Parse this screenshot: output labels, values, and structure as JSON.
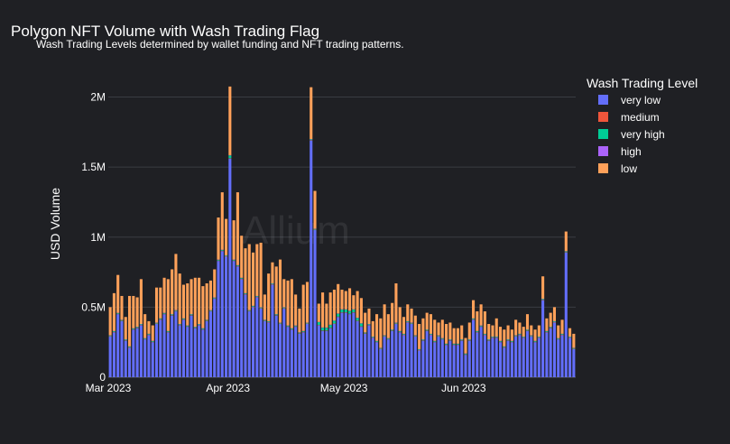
{
  "chart_data": {
    "type": "bar",
    "stacked": true,
    "title": "Polygon NFT Volume with Wash Trading Flag",
    "subtitle": "Wash Trading Levels determined by wallet funding and NFT trading patterns.",
    "ylabel": "USD Volume",
    "xlabel": "",
    "watermark": "Allium",
    "ylim": [
      0,
      2100000
    ],
    "y_ticks": [
      0,
      500000,
      1000000,
      1500000,
      2000000
    ],
    "y_tick_labels": [
      "0",
      "0.5M",
      "1M",
      "1.5M",
      "2M"
    ],
    "x_ticks": [
      "2023-03-01",
      "2023-04-01",
      "2023-05-01",
      "2023-06-01"
    ],
    "x_tick_labels": [
      "Mar 2023",
      "Apr 2023",
      "May 2023",
      "Jun 2023"
    ],
    "x_start": "2023-03-01",
    "legend": {
      "title": "Wash Trading Level",
      "position": "right"
    },
    "grid": true,
    "series": [
      {
        "name": "very low",
        "color": "#636efa",
        "values": [
          290000,
          320000,
          450000,
          400000,
          260000,
          210000,
          340000,
          350000,
          370000,
          270000,
          300000,
          250000,
          380000,
          410000,
          450000,
          320000,
          440000,
          470000,
          370000,
          410000,
          360000,
          440000,
          350000,
          370000,
          340000,
          400000,
          470000,
          560000,
          830000,
          900000,
          860000,
          1560000,
          830000,
          790000,
          700000,
          590000,
          470000,
          500000,
          570000,
          490000,
          400000,
          390000,
          660000,
          440000,
          380000,
          490000,
          360000,
          340000,
          360000,
          310000,
          320000,
          380000,
          1690000,
          1050000,
          370000,
          330000,
          330000,
          350000,
          380000,
          430000,
          460000,
          460000,
          450000,
          460000,
          400000,
          360000,
          310000,
          370000,
          280000,
          250000,
          200000,
          290000,
          270000,
          330000,
          380000,
          320000,
          300000,
          390000,
          380000,
          290000,
          190000,
          260000,
          330000,
          300000,
          250000,
          290000,
          270000,
          230000,
          260000,
          230000,
          230000,
          260000,
          160000,
          260000,
          410000,
          320000,
          360000,
          300000,
          260000,
          280000,
          280000,
          250000,
          210000,
          260000,
          250000,
          290000,
          300000,
          280000,
          330000,
          290000,
          250000,
          280000,
          550000,
          320000,
          350000,
          390000,
          270000,
          300000,
          890000,
          280000,
          200000
        ]
      },
      {
        "name": "medium",
        "color": "#ef553b",
        "values": [
          3000,
          3000,
          3000,
          3000,
          3000,
          3000,
          3000,
          3000,
          3000,
          3000,
          3000,
          3000,
          3000,
          3000,
          3000,
          3000,
          3000,
          3000,
          3000,
          3000,
          3000,
          3000,
          3000,
          3000,
          3000,
          3000,
          3000,
          3000,
          3000,
          3000,
          3000,
          3000,
          3000,
          3000,
          3000,
          3000,
          3000,
          3000,
          3000,
          3000,
          3000,
          3000,
          3000,
          3000,
          3000,
          3000,
          3000,
          3000,
          3000,
          3000,
          3000,
          3000,
          3000,
          3000,
          3000,
          3000,
          3000,
          3000,
          3000,
          3000,
          3000,
          3000,
          3000,
          3000,
          3000,
          3000,
          3000,
          3000,
          3000,
          3000,
          3000,
          3000,
          3000,
          3000,
          3000,
          3000,
          3000,
          3000,
          3000,
          3000,
          3000,
          3000,
          3000,
          3000,
          3000,
          3000,
          3000,
          3000,
          3000,
          3000,
          3000,
          3000,
          3000,
          3000,
          3000,
          3000,
          3000,
          3000,
          3000,
          3000,
          3000,
          3000,
          3000,
          3000,
          3000,
          3000,
          3000,
          3000,
          3000,
          3000,
          3000,
          3000,
          3000,
          3000,
          3000,
          3000,
          3000,
          3000,
          3000,
          3000,
          3000
        ]
      },
      {
        "name": "very high",
        "color": "#00cc96",
        "values": [
          5000,
          5000,
          5000,
          5000,
          5000,
          5000,
          5000,
          5000,
          5000,
          5000,
          5000,
          5000,
          5000,
          5000,
          5000,
          5000,
          5000,
          5000,
          5000,
          5000,
          5000,
          5000,
          5000,
          5000,
          5000,
          5000,
          5000,
          5000,
          5000,
          5000,
          5000,
          20000,
          5000,
          5000,
          5000,
          5000,
          5000,
          5000,
          5000,
          5000,
          5000,
          5000,
          5000,
          5000,
          5000,
          5000,
          5000,
          5000,
          5000,
          5000,
          5000,
          5000,
          5000,
          5000,
          20000,
          20000,
          20000,
          20000,
          20000,
          20000,
          20000,
          20000,
          20000,
          20000,
          20000,
          20000,
          5000,
          5000,
          5000,
          5000,
          5000,
          5000,
          5000,
          5000,
          5000,
          5000,
          5000,
          5000,
          5000,
          5000,
          5000,
          5000,
          5000,
          5000,
          5000,
          5000,
          5000,
          5000,
          5000,
          5000,
          5000,
          5000,
          5000,
          5000,
          5000,
          5000,
          5000,
          5000,
          5000,
          5000,
          5000,
          5000,
          5000,
          5000,
          5000,
          5000,
          5000,
          5000,
          5000,
          5000,
          5000,
          5000,
          5000,
          5000,
          5000,
          5000,
          5000,
          5000,
          5000,
          5000,
          5000
        ]
      },
      {
        "name": "high",
        "color": "#ab63fa",
        "values": [
          2000,
          2000,
          2000,
          2000,
          2000,
          2000,
          2000,
          2000,
          2000,
          2000,
          2000,
          2000,
          2000,
          2000,
          2000,
          2000,
          2000,
          2000,
          2000,
          2000,
          2000,
          2000,
          2000,
          2000,
          2000,
          2000,
          2000,
          2000,
          2000,
          2000,
          2000,
          2000,
          2000,
          2000,
          2000,
          2000,
          2000,
          2000,
          2000,
          2000,
          2000,
          2000,
          2000,
          2000,
          2000,
          2000,
          2000,
          2000,
          2000,
          2000,
          2000,
          2000,
          2000,
          2000,
          2000,
          2000,
          2000,
          2000,
          2000,
          2000,
          2000,
          2000,
          2000,
          2000,
          2000,
          2000,
          2000,
          2000,
          2000,
          2000,
          2000,
          2000,
          2000,
          2000,
          2000,
          2000,
          2000,
          2000,
          2000,
          2000,
          2000,
          2000,
          2000,
          2000,
          2000,
          2000,
          2000,
          2000,
          2000,
          2000,
          2000,
          2000,
          2000,
          2000,
          2000,
          2000,
          2000,
          2000,
          2000,
          2000,
          2000,
          2000,
          2000,
          2000,
          2000,
          2000,
          2000,
          2000,
          2000,
          2000,
          2000,
          2000,
          2000,
          2000,
          2000,
          2000,
          2000,
          2000,
          2000,
          2000,
          2000
        ]
      },
      {
        "name": "low",
        "color": "#ffa15a",
        "values": [
          200000,
          270000,
          270000,
          170000,
          160000,
          360000,
          230000,
          210000,
          320000,
          170000,
          90000,
          110000,
          250000,
          220000,
          250000,
          370000,
          320000,
          400000,
          360000,
          240000,
          300000,
          250000,
          350000,
          330000,
          300000,
          260000,
          210000,
          200000,
          300000,
          410000,
          260000,
          490000,
          280000,
          520000,
          300000,
          320000,
          470000,
          380000,
          370000,
          460000,
          180000,
          340000,
          150000,
          340000,
          450000,
          200000,
          320000,
          350000,
          220000,
          170000,
          330000,
          290000,
          370000,
          270000,
          130000,
          250000,
          170000,
          230000,
          220000,
          210000,
          140000,
          130000,
          160000,
          100000,
          190000,
          180000,
          140000,
          110000,
          110000,
          190000,
          210000,
          220000,
          170000,
          190000,
          280000,
          170000,
          120000,
          120000,
          100000,
          140000,
          180000,
          150000,
          120000,
          140000,
          150000,
          90000,
          130000,
          140000,
          120000,
          110000,
          110000,
          100000,
          110000,
          120000,
          130000,
          140000,
          150000,
          160000,
          110000,
          80000,
          130000,
          100000,
          120000,
          100000,
          80000,
          110000,
          80000,
          70000,
          110000,
          70000,
          80000,
          80000,
          160000,
          90000,
          100000,
          100000,
          90000,
          100000,
          140000,
          60000,
          100000
        ]
      }
    ]
  }
}
